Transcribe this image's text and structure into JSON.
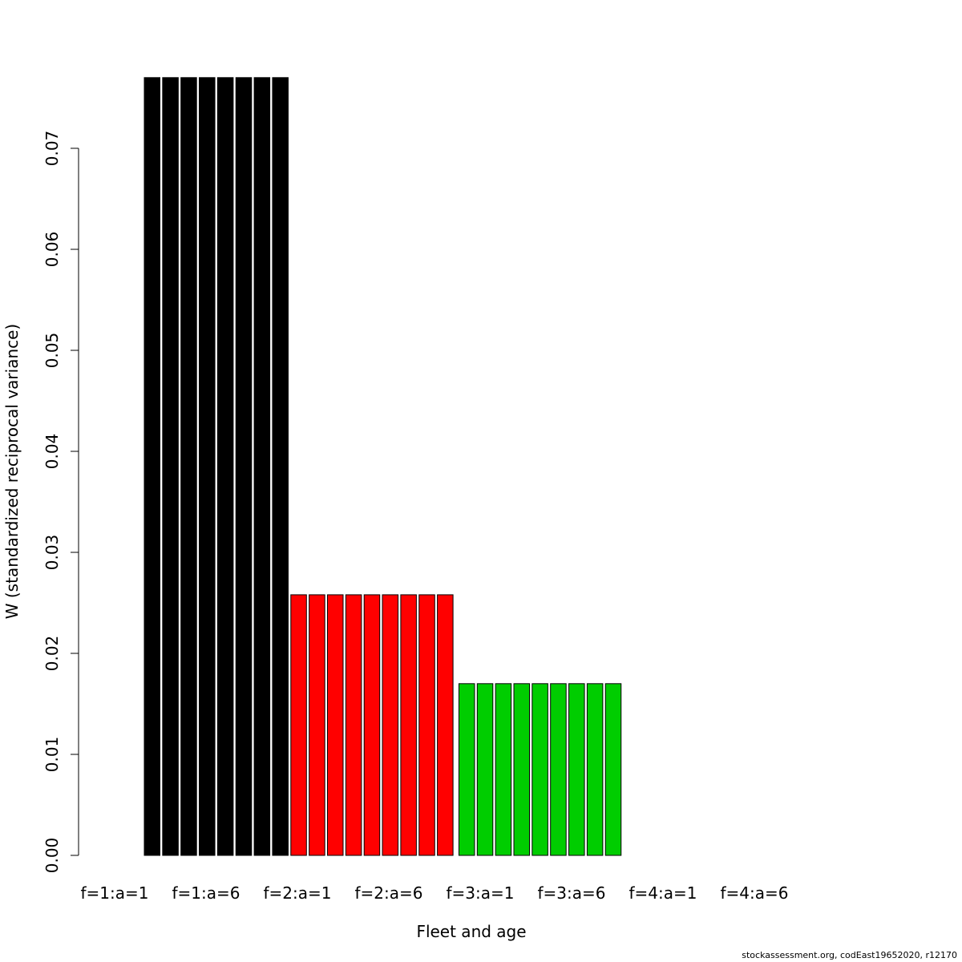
{
  "chart_data": {
    "type": "bar",
    "xlabel": "Fleet and age",
    "ylabel": "W (standardized reciprocal variance)",
    "ylim": [
      0,
      0.07
    ],
    "yticks": [
      "0.00",
      "0.01",
      "0.02",
      "0.03",
      "0.04",
      "0.05",
      "0.06",
      "0.07"
    ],
    "xtick_labels": [
      "f=1:a=1",
      "f=1:a=6",
      "f=2:a=1",
      "f=2:a=6",
      "f=3:a=1",
      "f=3:a=6",
      "f=4:a=1",
      "f=4:a=6"
    ],
    "series": [
      {
        "fleet": 1,
        "color": "#000000",
        "values": [
          0.077,
          0.077,
          0.077,
          0.077,
          0.077,
          0.077,
          0.077,
          0.077
        ]
      },
      {
        "fleet": 2,
        "color": "#ff0000",
        "values": [
          0.0258,
          0.0258,
          0.0258,
          0.0258,
          0.0258,
          0.0258,
          0.0258,
          0.0258,
          0.0258
        ]
      },
      {
        "fleet": 3,
        "color": "#00cd00",
        "values": [
          0.017,
          0.017,
          0.017,
          0.017,
          0.017,
          0.017,
          0.017,
          0.017,
          0.017
        ]
      }
    ]
  },
  "footer": "stockassessment.org, codEast19652020, r12170"
}
